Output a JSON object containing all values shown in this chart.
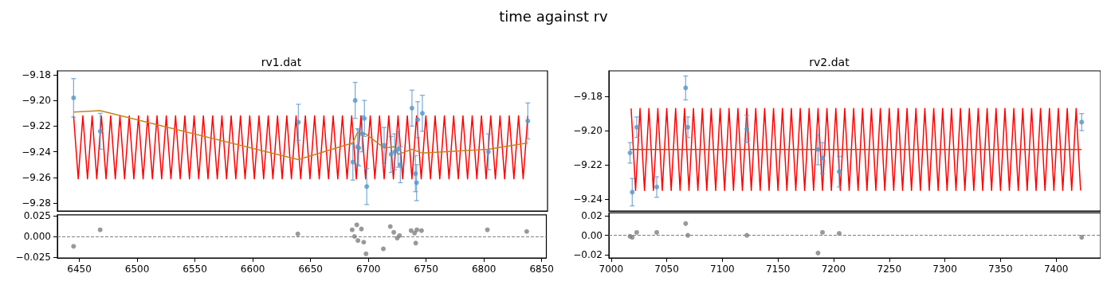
{
  "chart_data": [
    {
      "type": "scatter",
      "title": "rv1.dat",
      "annotations": [
        "time against rv"
      ],
      "xlim": [
        6431,
        6854
      ],
      "xticks": [
        6450,
        6500,
        6550,
        6600,
        6650,
        6700,
        6750,
        6800,
        6850
      ],
      "ylim": [
        -9.286,
        -9.177
      ],
      "yticks": [
        {
          "value": -9.28,
          "label": "−9.28"
        },
        {
          "value": -9.26,
          "label": "−9.26"
        },
        {
          "value": -9.24,
          "label": "−9.24"
        },
        {
          "value": -9.22,
          "label": "−9.22"
        },
        {
          "value": -9.2,
          "label": "−9.20"
        },
        {
          "value": -9.18,
          "label": "−9.18"
        }
      ],
      "tick_labels": "y",
      "grid": false,
      "x": [
        6445,
        6468,
        6639,
        6686,
        6688,
        6690,
        6691,
        6694,
        6696,
        6698,
        6713,
        6719,
        6722,
        6725,
        6727,
        6737,
        6740,
        6741,
        6742,
        6746,
        6803,
        6837
      ],
      "series": [
        {
          "type": "line",
          "color": "#ff0000",
          "marker": "none",
          "line_style": "solid",
          "x": [
            6445,
            6449,
            6453,
            6457,
            6461,
            6465,
            6469,
            6473,
            6477,
            6481,
            6485,
            6489,
            6493,
            6497,
            6501,
            6505,
            6509,
            6513,
            6517,
            6521,
            6525,
            6529,
            6533,
            6537,
            6541,
            6545,
            6549,
            6553,
            6557,
            6561,
            6565,
            6569,
            6573,
            6577,
            6581,
            6585,
            6589,
            6593,
            6597,
            6601,
            6605,
            6609,
            6613,
            6617,
            6621,
            6625,
            6629,
            6633,
            6637,
            6641,
            6645,
            6649,
            6653,
            6657,
            6661,
            6665,
            6669,
            6673,
            6677,
            6681,
            6685,
            6689,
            6693,
            6697,
            6701,
            6705,
            6709,
            6713,
            6717,
            6721,
            6725,
            6729,
            6733,
            6737,
            6741,
            6745,
            6749,
            6753,
            6757,
            6761,
            6765,
            6769,
            6773,
            6777,
            6781,
            6785,
            6789,
            6793,
            6797,
            6801,
            6805,
            6809,
            6813,
            6817,
            6821,
            6825,
            6829,
            6833,
            6837
          ],
          "values": [
            -9.212,
            -9.261,
            -9.212,
            -9.261,
            -9.212,
            -9.261,
            -9.212,
            -9.261,
            -9.212,
            -9.261,
            -9.212,
            -9.261,
            -9.212,
            -9.261,
            -9.212,
            -9.261,
            -9.212,
            -9.261,
            -9.212,
            -9.261,
            -9.212,
            -9.261,
            -9.212,
            -9.261,
            -9.212,
            -9.261,
            -9.212,
            -9.261,
            -9.212,
            -9.261,
            -9.212,
            -9.261,
            -9.212,
            -9.261,
            -9.212,
            -9.261,
            -9.212,
            -9.261,
            -9.212,
            -9.261,
            -9.212,
            -9.261,
            -9.212,
            -9.261,
            -9.212,
            -9.261,
            -9.212,
            -9.261,
            -9.212,
            -9.261,
            -9.212,
            -9.261,
            -9.212,
            -9.261,
            -9.212,
            -9.261,
            -9.212,
            -9.261,
            -9.212,
            -9.261,
            -9.212,
            -9.261,
            -9.212,
            -9.261,
            -9.212,
            -9.261,
            -9.212,
            -9.261,
            -9.212,
            -9.261,
            -9.212,
            -9.261,
            -9.212,
            -9.261,
            -9.212,
            -9.261,
            -9.212,
            -9.261,
            -9.212,
            -9.261,
            -9.212,
            -9.261,
            -9.212,
            -9.261,
            -9.212,
            -9.261,
            -9.212,
            -9.261,
            -9.212,
            -9.261,
            -9.212,
            -9.261,
            -9.212,
            -9.261,
            -9.212,
            -9.261,
            -9.212,
            -9.261,
            -9.212
          ]
        },
        {
          "type": "line",
          "color": "#c8821a",
          "marker": "none",
          "line_style": "solid",
          "x": [
            6445,
            6468,
            6639,
            6686,
            6690,
            6697,
            6713,
            6722,
            6725,
            6737,
            6746,
            6803,
            6837
          ],
          "values": [
            -9.209,
            -9.208,
            -9.246,
            -9.233,
            -9.225,
            -9.226,
            -9.237,
            -9.236,
            -9.242,
            -9.238,
            -9.241,
            -9.238,
            -9.233
          ]
        },
        {
          "type": "scatter",
          "color": "#5596c9",
          "marker": "circle",
          "values": [
            -9.198,
            -9.224,
            -9.217,
            -9.248,
            -9.2,
            -9.236,
            -9.237,
            -9.226,
            -9.214,
            -9.267,
            -9.235,
            -9.242,
            -9.24,
            -9.238,
            -9.25,
            -9.206,
            -9.257,
            -9.264,
            -9.215,
            -9.21,
            -9.24,
            -9.216
          ],
          "errors": [
            0.015,
            0.014,
            0.014,
            0.014,
            0.014,
            0.014,
            0.014,
            0.014,
            0.014,
            0.014,
            0.014,
            0.014,
            0.014,
            0.014,
            0.014,
            0.014,
            0.014,
            0.014,
            0.014,
            0.014,
            0.014,
            0.014
          ]
        }
      ]
    },
    {
      "type": "scatter",
      "xlim": [
        6431,
        6854
      ],
      "xticks": [
        6450,
        6500,
        6550,
        6600,
        6650,
        6700,
        6750,
        6800,
        6850
      ],
      "ylim": [
        -0.026,
        0.026
      ],
      "yticks": [
        {
          "value": -0.025,
          "label": "−0.025"
        },
        {
          "value": 0,
          "label": "0.000"
        },
        0.025
      ],
      "grid": false,
      "x": [
        6445,
        6468,
        6639,
        6686,
        6688,
        6690,
        6691,
        6694,
        6696,
        6698,
        6713,
        6719,
        6722,
        6725,
        6727,
        6737,
        6740,
        6741,
        6742,
        6746,
        6803,
        6837
      ],
      "ref_lines": [
        {
          "axis": "y",
          "value": 0,
          "color": "#808080",
          "line_style": "dashed"
        }
      ],
      "series": [
        {
          "color": "#808080",
          "marker": "circle",
          "values": [
            -0.012,
            0.008,
            0.003,
            0.008,
            0,
            0.014,
            -0.005,
            0.009,
            -0.007,
            -0.021,
            -0.015,
            0.012,
            0.005,
            -0.002,
            0.001,
            0.007,
            0.004,
            -0.008,
            0.008,
            0.007,
            0.008,
            0.006
          ]
        }
      ]
    },
    {
      "type": "scatter",
      "title": "rv2.dat",
      "xlim": [
        6998,
        7440
      ],
      "xticks": [
        7000,
        7050,
        7100,
        7150,
        7200,
        7250,
        7300,
        7350,
        7400
      ],
      "ylim": [
        -9.247,
        -9.165
      ],
      "yticks": [
        {
          "value": -9.24,
          "label": "−9.24"
        },
        {
          "value": -9.22,
          "label": "−9.22"
        },
        {
          "value": -9.2,
          "label": "−9.20"
        },
        {
          "value": -9.18,
          "label": "−9.18"
        }
      ],
      "tick_labels": "y",
      "grid": false,
      "x": [
        7017,
        7019,
        7023,
        7041,
        7067,
        7069,
        7122,
        7186,
        7190,
        7205,
        7423
      ],
      "series": [
        {
          "type": "line",
          "color": "#ff0000",
          "marker": "none",
          "line_style": "solid",
          "x": [
            7018,
            7022,
            7026,
            7030,
            7034,
            7038,
            7042,
            7046,
            7050,
            7054,
            7058,
            7062,
            7066,
            7070,
            7074,
            7078,
            7082,
            7086,
            7090,
            7094,
            7098,
            7102,
            7106,
            7110,
            7114,
            7118,
            7122,
            7126,
            7130,
            7134,
            7138,
            7142,
            7146,
            7150,
            7154,
            7158,
            7162,
            7166,
            7170,
            7174,
            7178,
            7182,
            7186,
            7190,
            7194,
            7198,
            7202,
            7206,
            7210,
            7214,
            7218,
            7222,
            7226,
            7230,
            7234,
            7238,
            7242,
            7246,
            7250,
            7254,
            7258,
            7262,
            7266,
            7270,
            7274,
            7278,
            7282,
            7286,
            7290,
            7294,
            7298,
            7302,
            7306,
            7310,
            7314,
            7318,
            7322,
            7326,
            7330,
            7334,
            7338,
            7342,
            7346,
            7350,
            7354,
            7358,
            7362,
            7366,
            7370,
            7374,
            7378,
            7382,
            7386,
            7390,
            7394,
            7398,
            7402,
            7406,
            7410,
            7414,
            7418,
            7422
          ],
          "values": [
            -9.187,
            -9.235,
            -9.187,
            -9.235,
            -9.187,
            -9.235,
            -9.187,
            -9.235,
            -9.187,
            -9.235,
            -9.187,
            -9.235,
            -9.187,
            -9.235,
            -9.187,
            -9.235,
            -9.187,
            -9.235,
            -9.187,
            -9.235,
            -9.187,
            -9.235,
            -9.187,
            -9.235,
            -9.187,
            -9.235,
            -9.187,
            -9.235,
            -9.187,
            -9.235,
            -9.187,
            -9.235,
            -9.187,
            -9.235,
            -9.187,
            -9.235,
            -9.187,
            -9.235,
            -9.187,
            -9.235,
            -9.187,
            -9.235,
            -9.187,
            -9.235,
            -9.187,
            -9.235,
            -9.187,
            -9.235,
            -9.187,
            -9.235,
            -9.187,
            -9.235,
            -9.187,
            -9.235,
            -9.187,
            -9.235,
            -9.187,
            -9.235,
            -9.187,
            -9.235,
            -9.187,
            -9.235,
            -9.187,
            -9.235,
            -9.187,
            -9.235,
            -9.187,
            -9.235,
            -9.187,
            -9.235,
            -9.187,
            -9.235,
            -9.187,
            -9.235,
            -9.187,
            -9.235,
            -9.187,
            -9.235,
            -9.187,
            -9.235,
            -9.187,
            -9.235,
            -9.187,
            -9.235,
            -9.187,
            -9.235,
            -9.187,
            -9.235,
            -9.187,
            -9.235,
            -9.187,
            -9.235,
            -9.187,
            -9.235,
            -9.187,
            -9.235,
            -9.187,
            -9.235,
            -9.187,
            -9.235,
            -9.187,
            -9.235
          ]
        },
        {
          "type": "line",
          "color": "#e03c0a",
          "marker": "none",
          "line_style": "solid",
          "x": [
            7017,
            7423
          ],
          "values": [
            -9.211,
            -9.211
          ]
        },
        {
          "type": "scatter",
          "color": "#5596c9",
          "marker": "circle",
          "values": [
            -9.213,
            -9.236,
            -9.198,
            -9.233,
            -9.175,
            -9.198,
            -9.199,
            -9.211,
            -9.216,
            -9.224,
            -9.195
          ],
          "errors": [
            0.006,
            0.008,
            0.006,
            0.006,
            0.007,
            0.006,
            0.008,
            0.009,
            0.009,
            0.009,
            0.005
          ]
        }
      ]
    },
    {
      "type": "scatter",
      "xlim": [
        6998,
        7440
      ],
      "xticks": [
        7000,
        7050,
        7100,
        7150,
        7200,
        7250,
        7300,
        7350,
        7400
      ],
      "ylim": [
        -0.023,
        0.023
      ],
      "yticks": [
        {
          "value": -0.02,
          "label": "−0.02"
        },
        {
          "value": 0,
          "label": "0.00"
        },
        0.02
      ],
      "grid": false,
      "x": [
        7017,
        7019,
        7023,
        7041,
        7067,
        7069,
        7122,
        7186,
        7190,
        7205,
        7423
      ],
      "ref_lines": [
        {
          "axis": "y",
          "value": 0,
          "color": "#808080",
          "line_style": "dashed"
        }
      ],
      "series": [
        {
          "color": "#808080",
          "marker": "circle",
          "values": [
            -0.001,
            -0.002,
            0.003,
            0.003,
            0.012,
            0,
            0,
            -0.018,
            0.003,
            0.002,
            -0.002
          ]
        }
      ]
    }
  ]
}
